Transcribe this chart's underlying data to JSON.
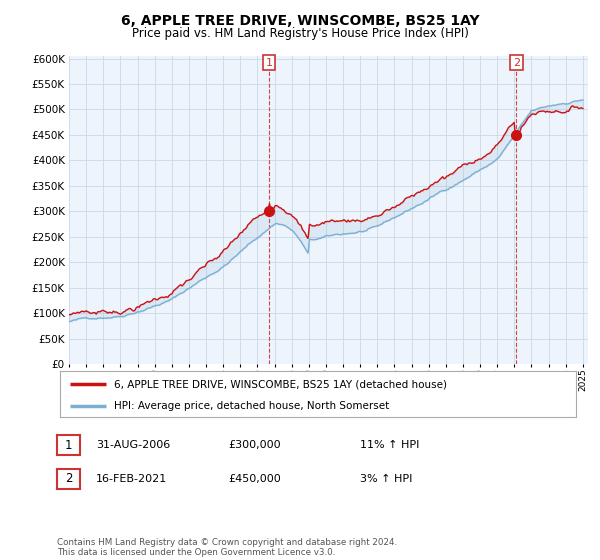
{
  "title": "6, APPLE TREE DRIVE, WINSCOMBE, BS25 1AY",
  "subtitle": "Price paid vs. HM Land Registry's House Price Index (HPI)",
  "ylim": [
    0,
    600000
  ],
  "yticks": [
    0,
    50000,
    100000,
    150000,
    200000,
    250000,
    300000,
    350000,
    400000,
    450000,
    500000,
    550000,
    600000
  ],
  "hpi_color": "#7bafd4",
  "hpi_fill_color": "#ddeeff",
  "price_color": "#cc1111",
  "vline_color": "#cc3333",
  "marker1_date": 2006.67,
  "marker1_value": 300000,
  "marker2_date": 2021.12,
  "marker2_value": 450000,
  "plot_bg_color": "#eef4fb",
  "legend_entries": [
    "6, APPLE TREE DRIVE, WINSCOMBE, BS25 1AY (detached house)",
    "HPI: Average price, detached house, North Somerset"
  ],
  "table_rows": [
    [
      "1",
      "31-AUG-2006",
      "£300,000",
      "11% ↑ HPI"
    ],
    [
      "2",
      "16-FEB-2021",
      "£450,000",
      "3% ↑ HPI"
    ]
  ],
  "footnote": "Contains HM Land Registry data © Crown copyright and database right 2024.\nThis data is licensed under the Open Government Licence v3.0.",
  "bg_color": "#ffffff",
  "grid_color": "#c8d8e8"
}
